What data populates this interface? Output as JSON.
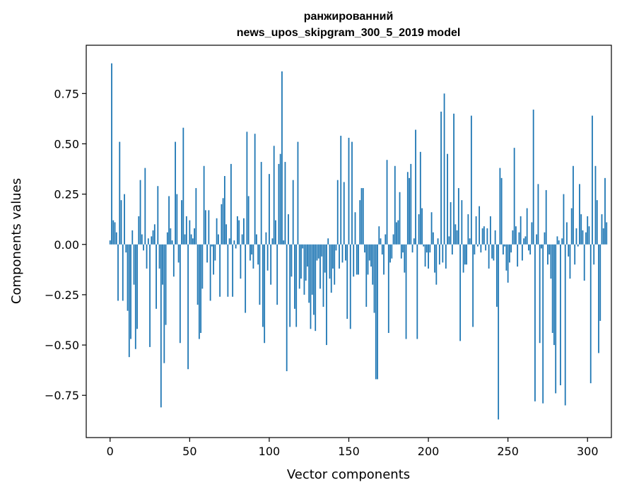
{
  "chart_data": {
    "type": "bar",
    "title_line1": "ранжированний",
    "title_line2": "news_upos_skipgram_300_5_2019 model",
    "xlabel": "Vector components",
    "ylabel": "Components values",
    "xlim": [
      -15,
      315
    ],
    "ylim": [
      -0.96,
      0.99
    ],
    "x_ticks": [
      "0",
      "50",
      "100",
      "150",
      "200",
      "250",
      "300"
    ],
    "y_ticks": [
      "−0.75",
      "−0.50",
      "−0.25",
      "0.00",
      "0.25",
      "0.50",
      "0.75"
    ],
    "bar_color": "#1f77b4",
    "values": [
      0.02,
      0.9,
      0.12,
      0.11,
      0.06,
      -0.28,
      0.51,
      0.22,
      -0.28,
      0.25,
      -0.04,
      -0.33,
      -0.56,
      -0.47,
      0.07,
      -0.2,
      -0.52,
      -0.42,
      0.14,
      0.32,
      0.05,
      -0.03,
      0.38,
      -0.12,
      0.03,
      -0.51,
      0.04,
      0.07,
      0.1,
      -0.32,
      0.29,
      -0.12,
      -0.81,
      -0.2,
      -0.59,
      -0.4,
      0.06,
      0.24,
      0.08,
      0.02,
      -0.16,
      0.51,
      0.25,
      -0.09,
      -0.49,
      0.22,
      0.58,
      0.05,
      0.14,
      -0.62,
      0.12,
      0.05,
      0.03,
      0.08,
      0.28,
      -0.3,
      -0.47,
      -0.44,
      -0.22,
      0.39,
      0.17,
      -0.09,
      0.17,
      -0.28,
      -0.01,
      -0.15,
      -0.08,
      0.13,
      0.05,
      -0.26,
      0.2,
      0.23,
      0.34,
      0.1,
      -0.26,
      0.03,
      0.4,
      -0.26,
      0.02,
      -0.02,
      0.14,
      0.12,
      -0.17,
      0.05,
      0.13,
      -0.34,
      0.56,
      0.24,
      -0.08,
      -0.05,
      -0.12,
      0.55,
      0.05,
      -0.1,
      -0.3,
      0.41,
      -0.41,
      -0.49,
      0.06,
      -0.13,
      0.35,
      -0.2,
      0.03,
      0.49,
      0.12,
      -0.3,
      0.4,
      0.45,
      0.86,
      0.02,
      0.41,
      -0.63,
      0.15,
      -0.41,
      -0.16,
      0.32,
      -0.32,
      -0.41,
      0.51,
      -0.22,
      -0.17,
      -0.02,
      -0.25,
      -0.18,
      -0.11,
      -0.29,
      -0.42,
      -0.25,
      -0.35,
      -0.43,
      -0.08,
      -0.07,
      -0.22,
      -0.06,
      -0.31,
      -0.14,
      -0.5,
      0.03,
      -0.17,
      -0.24,
      -0.12,
      -0.2,
      -0.03,
      0.32,
      -0.12,
      0.54,
      -0.09,
      0.31,
      -0.08,
      -0.37,
      0.53,
      -0.42,
      0.51,
      -0.16,
      0.16,
      -0.15,
      -0.15,
      0.22,
      0.28,
      0.28,
      -0.04,
      -0.31,
      -0.15,
      -0.08,
      -0.11,
      -0.2,
      -0.34,
      -0.67,
      -0.67,
      0.09,
      0.03,
      -0.05,
      -0.15,
      0.05,
      0.42,
      -0.44,
      -0.09,
      -0.07,
      0.05,
      0.39,
      0.11,
      0.12,
      0.26,
      -0.07,
      -0.04,
      -0.14,
      -0.47,
      0.36,
      0.33,
      0.4,
      -0.04,
      0.03,
      0.57,
      -0.47,
      0.15,
      0.46,
      0.18,
      -0.01,
      -0.11,
      -0.04,
      -0.12,
      -0.04,
      0.16,
      0.06,
      -0.14,
      -0.2,
      0.03,
      -0.1,
      0.66,
      -0.09,
      0.75,
      -0.12,
      0.45,
      0.04,
      0.21,
      -0.05,
      0.65,
      0.1,
      0.07,
      0.28,
      -0.48,
      0.22,
      -0.14,
      -0.1,
      -0.1,
      0.15,
      0.03,
      0.64,
      -0.41,
      -0.05,
      0.14,
      -0.01,
      0.19,
      -0.04,
      0.08,
      0.09,
      -0.03,
      0.08,
      -0.12,
      0.14,
      -0.07,
      -0.08,
      0.07,
      -0.31,
      -0.87,
      0.38,
      0.33,
      -0.05,
      -0.01,
      -0.13,
      -0.19,
      -0.09,
      -0.04,
      0.07,
      0.48,
      0.09,
      -0.11,
      0.06,
      0.14,
      -0.08,
      0.03,
      0.04,
      0.18,
      -0.03,
      -0.05,
      0.11,
      0.67,
      -0.78,
      0.05,
      0.3,
      -0.49,
      -0.02,
      -0.79,
      0.06,
      0.27,
      -0.1,
      -0.05,
      -0.17,
      -0.44,
      -0.5,
      -0.74,
      0.04,
      0.02,
      -0.7,
      0.03,
      0.25,
      -0.8,
      0.11,
      -0.06,
      -0.17,
      0.18,
      0.39,
      -0.1,
      0.08,
      -0.01,
      0.3,
      0.15,
      0.07,
      -0.18,
      0.06,
      0.14,
      0.09,
      -0.69,
      0.64,
      -0.1,
      0.39,
      0.22,
      -0.54,
      -0.38,
      0.15,
      0.08,
      0.33,
      0.11
    ]
  }
}
